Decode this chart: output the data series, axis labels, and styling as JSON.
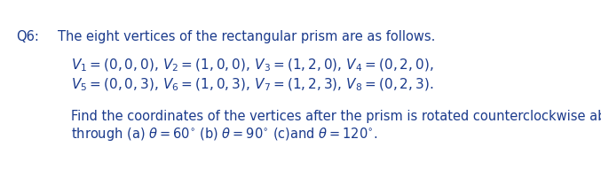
{
  "bg_color": "#ffffff",
  "label_q6": "Q6:",
  "line1_text": "    The eight vertices of the rectangular prism are as follows.",
  "math_line2a": "$V_1 = (0, 0, 0),\\, V_2 = (1, 0, 0),\\, V_3 = (1, 2, 0),\\, V_4 = (0, 2, 0),$",
  "math_line2b": "$V_5 = (0, 0, 3),\\, V_6 = (1, 0, 3),\\, V_7 = (1, 2, 3),\\, V_8 = (0, 2, 3).$",
  "line3": "Find the coordinates of the vertices after the prism is rotated counterclockwise about the z-axis",
  "line4": "through (a) $\\theta = 60^{\\circ}$ (b) $\\theta = 90^{\\circ}$ (c)and $\\theta = 120^{\\circ}$.",
  "font_size": 10.5,
  "font_size_math": 11.0,
  "text_color": "#1a3a8c",
  "q6_color": "#1a3a8c"
}
